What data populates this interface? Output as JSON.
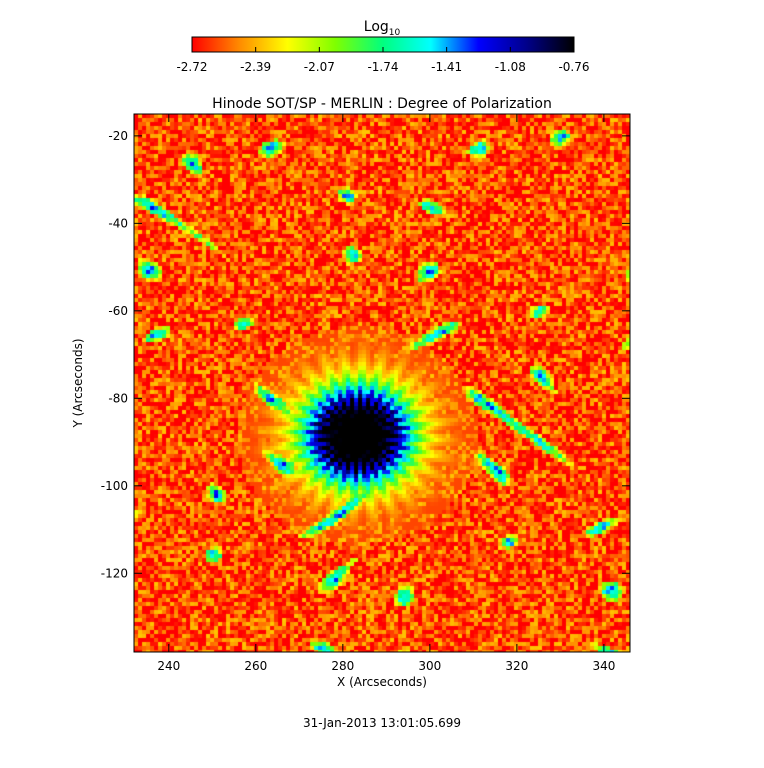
{
  "chart_data": {
    "type": "heatmap",
    "title": "Hinode SOT/SP - MERLIN : Degree of Polarization",
    "xlabel": "X (Arcseconds)",
    "ylabel": "Y (Arcseconds)",
    "xlim": [
      232,
      346
    ],
    "ylim": [
      -138,
      -15
    ],
    "xticks": [
      240,
      260,
      280,
      300,
      320,
      340
    ],
    "yticks": [
      -20,
      -40,
      -60,
      -80,
      -100,
      -120
    ],
    "colorbar": {
      "label_base": "Log",
      "label_sub": "10",
      "min": -2.72,
      "max": -0.76,
      "ticks": [
        "-2.72",
        "-2.39",
        "-2.07",
        "-1.74",
        "-1.41",
        "-1.08",
        "-0.76"
      ],
      "colormap": [
        "#ff0000",
        "#ff8c00",
        "#ffff00",
        "#7fff00",
        "#00ff7f",
        "#00ffff",
        "#0000ff",
        "#00008b",
        "#000000"
      ]
    },
    "sunspot_center": [
      283,
      -88
    ],
    "sunspot_umbra_value": -0.8,
    "background_value": -2.6,
    "annotation": "31-Jan-2013 13:01:05.699"
  }
}
